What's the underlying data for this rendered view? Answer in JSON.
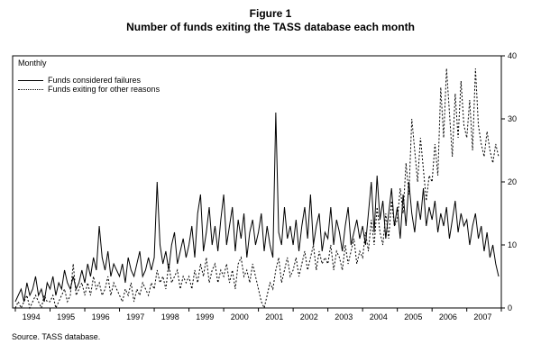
{
  "title": {
    "figure": "Figure 1",
    "text": "Number of funds exiting the TASS database each month"
  },
  "source": "Source. TASS database.",
  "chart_data": {
    "type": "line",
    "title": "Number of funds exiting the TASS database each month",
    "frequency_label": "Monthly",
    "xlabel": "",
    "ylabel": "",
    "ylim": [
      0,
      40
    ],
    "y_ticks": [
      0,
      10,
      20,
      30,
      40
    ],
    "grid": false,
    "legend_position": "top-left",
    "y_axis_side": "right",
    "x_tick_labels": [
      "1994",
      "1995",
      "1996",
      "1997",
      "1998",
      "1999",
      "2000",
      "2001",
      "2002",
      "2003",
      "2004",
      "2005",
      "2006",
      "2007"
    ],
    "points_per_category": 12,
    "series": [
      {
        "name": "Funds considered failures",
        "style": "solid",
        "values": [
          1,
          2,
          3,
          1,
          4,
          2,
          3,
          5,
          2,
          3,
          1,
          4,
          3,
          5,
          2,
          4,
          3,
          6,
          4,
          3,
          5,
          3,
          4,
          6,
          4,
          7,
          5,
          8,
          6,
          13,
          8,
          6,
          9,
          5,
          7,
          6,
          5,
          7,
          4,
          8,
          6,
          5,
          7,
          9,
          5,
          6,
          8,
          6,
          8,
          20,
          10,
          7,
          9,
          6,
          10,
          12,
          7,
          9,
          11,
          8,
          10,
          13,
          8,
          15,
          18,
          9,
          12,
          16,
          10,
          13,
          9,
          14,
          18,
          10,
          13,
          16,
          9,
          14,
          11,
          15,
          8,
          12,
          14,
          10,
          12,
          15,
          9,
          13,
          10,
          8,
          31,
          12,
          10,
          16,
          11,
          13,
          10,
          14,
          9,
          13,
          16,
          11,
          18,
          10,
          13,
          15,
          9,
          12,
          11,
          16,
          10,
          14,
          12,
          9,
          13,
          16,
          10,
          12,
          14,
          11,
          13,
          10,
          15,
          20,
          12,
          21,
          14,
          17,
          11,
          15,
          19,
          13,
          16,
          11,
          18,
          13,
          20,
          15,
          12,
          17,
          14,
          19,
          13,
          16,
          14,
          17,
          12,
          15,
          13,
          16,
          11,
          14,
          17,
          12,
          15,
          13,
          14,
          10,
          13,
          15,
          11,
          13,
          9,
          12,
          8,
          10,
          7,
          5
        ]
      },
      {
        "name": "Funds exiting for other reasons",
        "style": "dotted",
        "values": [
          0,
          1,
          0,
          1,
          2,
          0,
          1,
          2,
          1,
          0,
          2,
          1,
          1,
          2,
          0,
          1,
          2,
          3,
          1,
          2,
          7,
          2,
          3,
          4,
          2,
          4,
          2,
          5,
          3,
          4,
          2,
          3,
          5,
          2,
          4,
          3,
          2,
          1,
          3,
          2,
          4,
          1,
          3,
          2,
          4,
          3,
          2,
          4,
          3,
          6,
          4,
          5,
          3,
          7,
          4,
          5,
          6,
          3,
          5,
          4,
          5,
          3,
          6,
          4,
          7,
          5,
          8,
          4,
          6,
          7,
          4,
          6,
          5,
          7,
          4,
          6,
          3,
          7,
          8,
          5,
          6,
          4,
          7,
          5,
          3,
          1,
          0,
          2,
          4,
          3,
          6,
          8,
          4,
          6,
          8,
          5,
          6,
          8,
          5,
          7,
          9,
          6,
          8,
          10,
          6,
          9,
          7,
          8,
          7,
          10,
          6,
          9,
          8,
          6,
          10,
          7,
          9,
          11,
          7,
          9,
          8,
          12,
          9,
          14,
          10,
          16,
          12,
          10,
          15,
          11,
          17,
          13,
          14,
          19,
          15,
          23,
          18,
          30,
          25,
          20,
          27,
          22,
          17,
          21,
          20,
          26,
          21,
          35,
          27,
          38,
          31,
          24,
          34,
          27,
          36,
          29,
          27,
          33,
          25,
          38,
          29,
          26,
          24,
          28,
          25,
          23,
          26,
          24
        ]
      }
    ]
  }
}
